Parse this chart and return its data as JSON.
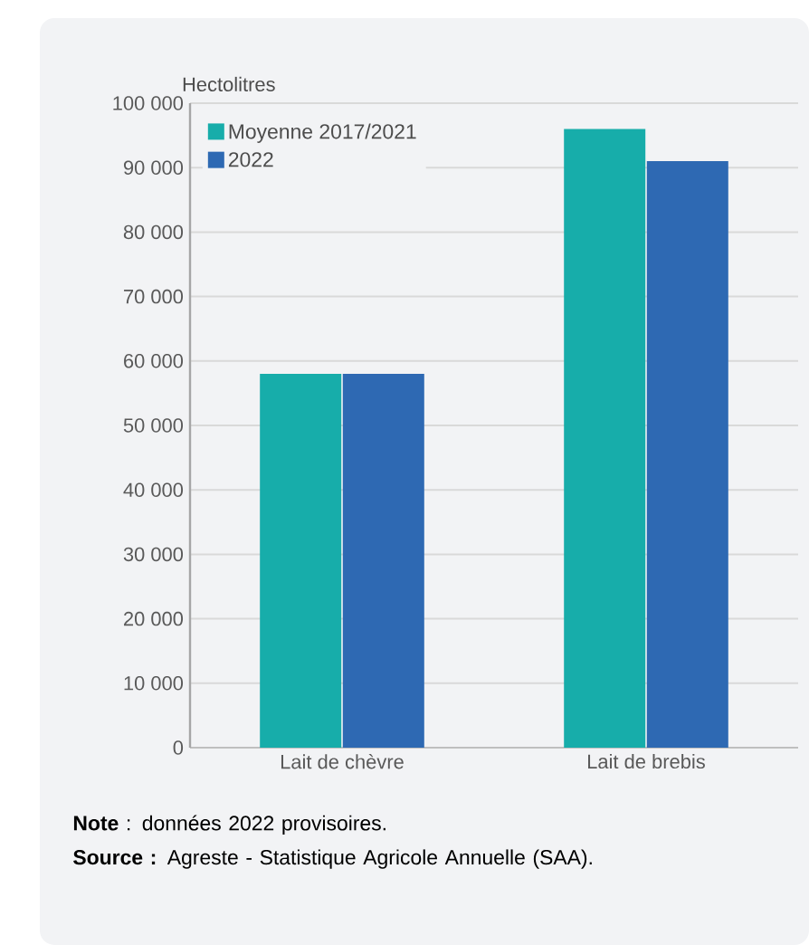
{
  "chart_data": {
    "type": "bar",
    "ylabel": "Hectolitres",
    "categories": [
      "Lait de chèvre",
      "Lait de brebis"
    ],
    "series": [
      {
        "name": "Moyenne 2017/2021",
        "color": "#17adaa",
        "values": [
          58000,
          96000
        ]
      },
      {
        "name": "2022",
        "color": "#2e69b3",
        "values": [
          58000,
          91000
        ]
      }
    ],
    "ylim": [
      0,
      100000
    ],
    "yticks": [
      0,
      {
        "value": 10000,
        "label": "10 000"
      },
      {
        "value": 20000,
        "label": "20 000"
      },
      {
        "value": 30000,
        "label": "30 000"
      },
      {
        "value": 40000,
        "label": "40 000"
      },
      {
        "value": 50000,
        "label": "50 000"
      },
      {
        "value": 60000,
        "label": "60 000"
      },
      {
        "value": 70000,
        "label": "70 000"
      },
      {
        "value": 80000,
        "label": "80 000"
      },
      {
        "value": 90000,
        "label": "90 000"
      },
      {
        "value": 100000,
        "label": "100 000"
      }
    ],
    "grid": "y",
    "legend": "top left",
    "annotations": [
      "**Note** : données 2022 provisoires.",
      "**Source :** Agreste - Statistique Agricole Annuelle (SAA)."
    ]
  }
}
